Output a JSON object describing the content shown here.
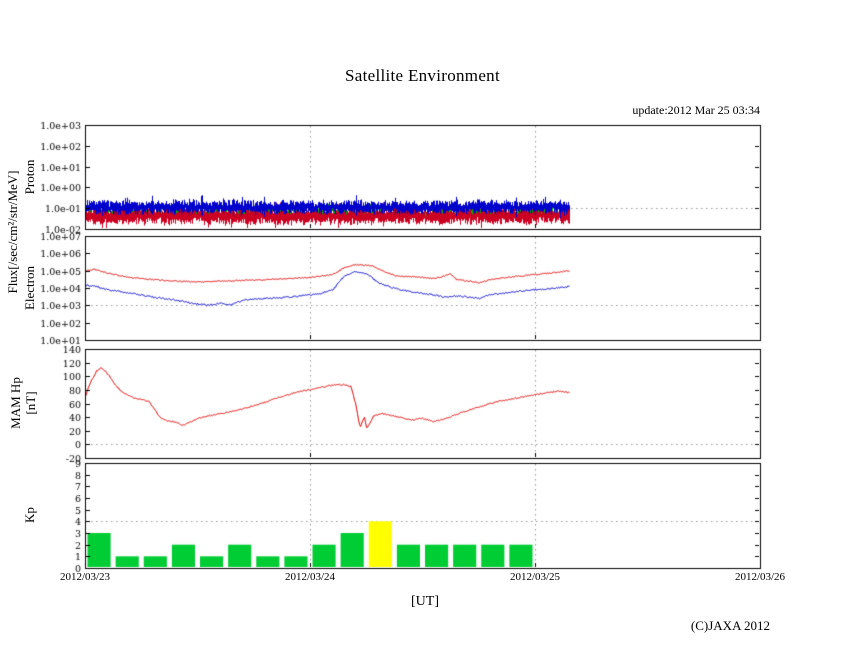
{
  "page": {
    "title": "Satellite Environment",
    "update": "update:2012 Mar 25 03:34",
    "copyright": "(C)JAXA 2012"
  },
  "labels": {
    "flux_axis": "Flux[/sec/cm²/str/MeV]"
  },
  "xaxis": {
    "ticks": [
      "2012/03/23",
      "2012/03/24",
      "2012/03/25",
      "2012/03/26"
    ],
    "range_days": 3,
    "unit": "[UT]"
  },
  "colors": {
    "kp_normal": "#00cc33",
    "kp_high": "#ffff00",
    "grid": "#999999",
    "axis": "#000000"
  },
  "chart_data": [
    {
      "id": "proton-flux",
      "type": "noise",
      "scale": "log",
      "ylabel": "Proton",
      "ylim": [
        0.01,
        1000
      ],
      "yticks": [
        {
          "label": "1.0e+03",
          "v": 1000
        },
        {
          "label": "1.0e+02",
          "v": 100
        },
        {
          "label": "1.0e+01",
          "v": 10
        },
        {
          "label": "1.0e+00",
          "v": 1
        },
        {
          "label": "1.0e-01",
          "v": 0.1
        },
        {
          "label": "1.0e-02",
          "v": 0.01
        }
      ],
      "dotted_y": 0.1,
      "data_end_days": 2.15,
      "series": [
        {
          "name": "proton-low-channel",
          "color": "#cc0022",
          "log_center": -1.35,
          "log_spread": 0.42
        },
        {
          "name": "proton-mid-channel",
          "color": "#00aa00",
          "log_center": -1.05,
          "log_spread": 0.16,
          "sparse": 0.45
        },
        {
          "name": "proton-high-channel",
          "color": "#0000cc",
          "log_center": -0.95,
          "log_spread": 0.3
        }
      ]
    },
    {
      "id": "electron-flux",
      "type": "line",
      "scale": "log",
      "ylabel": "Electron",
      "ylim": [
        10,
        10000000
      ],
      "yticks": [
        {
          "label": "1.0e+07",
          "v": 10000000
        },
        {
          "label": "1.0e+06",
          "v": 1000000
        },
        {
          "label": "1.0e+05",
          "v": 100000
        },
        {
          "label": "1.0e+04",
          "v": 10000
        },
        {
          "label": "1.0e+03",
          "v": 1000
        },
        {
          "label": "1.0e+02",
          "v": 100
        },
        {
          "label": "1.0e+01",
          "v": 10
        }
      ],
      "dotted_y": 1000,
      "data_end_days": 2.15,
      "series": [
        {
          "name": "electron-red-channel",
          "color": "#dd0000",
          "jitter": 0.07,
          "points": [
            [
              0,
              100000
            ],
            [
              0.04,
              120000
            ],
            [
              0.1,
              70000
            ],
            [
              0.2,
              40000
            ],
            [
              0.3,
              30000
            ],
            [
              0.4,
              25000
            ],
            [
              0.5,
              22000
            ],
            [
              0.6,
              25000
            ],
            [
              0.7,
              28000
            ],
            [
              0.8,
              30000
            ],
            [
              0.9,
              35000
            ],
            [
              1.0,
              40000
            ],
            [
              1.05,
              50000
            ],
            [
              1.1,
              60000
            ],
            [
              1.15,
              150000
            ],
            [
              1.2,
              220000
            ],
            [
              1.27,
              200000
            ],
            [
              1.32,
              100000
            ],
            [
              1.38,
              50000
            ],
            [
              1.45,
              45000
            ],
            [
              1.5,
              40000
            ],
            [
              1.55,
              35000
            ],
            [
              1.6,
              50000
            ],
            [
              1.62,
              70000
            ],
            [
              1.65,
              30000
            ],
            [
              1.7,
              25000
            ],
            [
              1.75,
              20000
            ],
            [
              1.8,
              30000
            ],
            [
              1.9,
              45000
            ],
            [
              2.0,
              60000
            ],
            [
              2.05,
              70000
            ],
            [
              2.1,
              80000
            ],
            [
              2.15,
              100000
            ]
          ]
        },
        {
          "name": "electron-blue-channel",
          "color": "#0000cc",
          "jitter": 0.09,
          "points": [
            [
              0,
              15000
            ],
            [
              0.05,
              12000
            ],
            [
              0.1,
              8000
            ],
            [
              0.2,
              5000
            ],
            [
              0.3,
              3000
            ],
            [
              0.4,
              2000
            ],
            [
              0.45,
              1500
            ],
            [
              0.5,
              1200
            ],
            [
              0.55,
              1000
            ],
            [
              0.6,
              1300
            ],
            [
              0.65,
              1100
            ],
            [
              0.7,
              2000
            ],
            [
              0.8,
              2500
            ],
            [
              0.9,
              3000
            ],
            [
              1.0,
              4000
            ],
            [
              1.05,
              5000
            ],
            [
              1.1,
              8000
            ],
            [
              1.15,
              50000
            ],
            [
              1.2,
              90000
            ],
            [
              1.25,
              70000
            ],
            [
              1.3,
              20000
            ],
            [
              1.35,
              12000
            ],
            [
              1.4,
              8000
            ],
            [
              1.45,
              6000
            ],
            [
              1.5,
              5000
            ],
            [
              1.55,
              4000
            ],
            [
              1.6,
              3000
            ],
            [
              1.65,
              3500
            ],
            [
              1.7,
              3000
            ],
            [
              1.75,
              2500
            ],
            [
              1.8,
              4000
            ],
            [
              1.9,
              6000
            ],
            [
              2.0,
              8000
            ],
            [
              2.05,
              9000
            ],
            [
              2.1,
              10000
            ],
            [
              2.15,
              12000
            ]
          ]
        }
      ]
    },
    {
      "id": "mam-hp",
      "type": "line",
      "scale": "linear",
      "ylabel": "MAM Hp",
      "ylabel2": "[nT]",
      "ylim": [
        -20,
        140
      ],
      "yticks": [
        {
          "label": "140",
          "v": 140
        },
        {
          "label": "120",
          "v": 120
        },
        {
          "label": "100",
          "v": 100
        },
        {
          "label": "80",
          "v": 80
        },
        {
          "label": "60",
          "v": 60
        },
        {
          "label": "40",
          "v": 40
        },
        {
          "label": "20",
          "v": 20
        },
        {
          "label": "0",
          "v": 0
        },
        {
          "label": "-20",
          "v": -20
        }
      ],
      "dotted_y": 0,
      "data_end_days": 2.15,
      "series": [
        {
          "name": "hp-red-trace",
          "color": "#dd0000",
          "jitter": 2,
          "points": [
            [
              0,
              70
            ],
            [
              0.02,
              90
            ],
            [
              0.05,
              108
            ],
            [
              0.07,
              113
            ],
            [
              0.1,
              103
            ],
            [
              0.13,
              88
            ],
            [
              0.16,
              78
            ],
            [
              0.2,
              70
            ],
            [
              0.25,
              66
            ],
            [
              0.28,
              63
            ],
            [
              0.3,
              55
            ],
            [
              0.33,
              40
            ],
            [
              0.36,
              35
            ],
            [
              0.4,
              33
            ],
            [
              0.43,
              28
            ],
            [
              0.46,
              32
            ],
            [
              0.5,
              38
            ],
            [
              0.55,
              42
            ],
            [
              0.6,
              45
            ],
            [
              0.65,
              48
            ],
            [
              0.7,
              52
            ],
            [
              0.75,
              57
            ],
            [
              0.8,
              62
            ],
            [
              0.85,
              68
            ],
            [
              0.9,
              73
            ],
            [
              0.95,
              78
            ],
            [
              1.0,
              80
            ],
            [
              1.05,
              84
            ],
            [
              1.1,
              87
            ],
            [
              1.15,
              88
            ],
            [
              1.18,
              85
            ],
            [
              1.2,
              60
            ],
            [
              1.22,
              25
            ],
            [
              1.24,
              40
            ],
            [
              1.25,
              22
            ],
            [
              1.28,
              42
            ],
            [
              1.32,
              45
            ],
            [
              1.36,
              42
            ],
            [
              1.4,
              40
            ],
            [
              1.45,
              36
            ],
            [
              1.5,
              38
            ],
            [
              1.55,
              33
            ],
            [
              1.6,
              38
            ],
            [
              1.65,
              44
            ],
            [
              1.7,
              50
            ],
            [
              1.75,
              55
            ],
            [
              1.8,
              60
            ],
            [
              1.85,
              64
            ],
            [
              1.9,
              67
            ],
            [
              1.95,
              70
            ],
            [
              2.0,
              73
            ],
            [
              2.05,
              76
            ],
            [
              2.1,
              78
            ],
            [
              2.15,
              76
            ]
          ]
        }
      ]
    },
    {
      "id": "kp-index",
      "type": "bar",
      "scale": "linear",
      "ylabel": "Kp",
      "ylim": [
        0,
        9
      ],
      "yticks": [
        {
          "label": "9",
          "v": 9
        },
        {
          "label": "8",
          "v": 8
        },
        {
          "label": "7",
          "v": 7
        },
        {
          "label": "6",
          "v": 6
        },
        {
          "label": "5",
          "v": 5
        },
        {
          "label": "4",
          "v": 4
        },
        {
          "label": "3",
          "v": 3
        },
        {
          "label": "2",
          "v": 2
        },
        {
          "label": "1",
          "v": 1
        },
        {
          "label": "0",
          "v": 0
        }
      ],
      "dotted_y": 4,
      "interval_hours": 3,
      "highlight_min": 4,
      "values": [
        3,
        1,
        1,
        2,
        1,
        2,
        1,
        1,
        2,
        3,
        4,
        2,
        2,
        2,
        2,
        2
      ]
    }
  ]
}
